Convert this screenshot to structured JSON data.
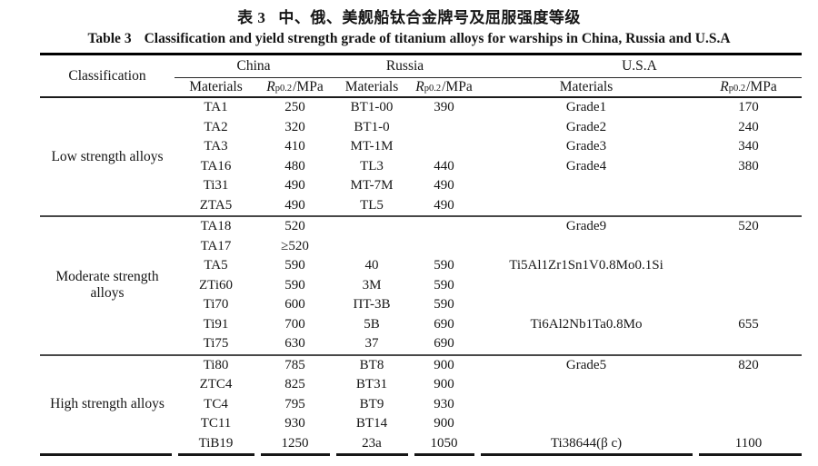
{
  "captions": {
    "zh_label": "表 3",
    "zh_text": "中、俄、美舰船钛合金牌号及屈服强度等级",
    "en_label": "Table 3",
    "en_text": "Classification and yield strength grade of titanium alloys for warships in China, Russia and U.S.A"
  },
  "table": {
    "header": {
      "classification": "Classification",
      "countries": [
        "China",
        "Russia",
        "U.S.A"
      ],
      "materials_label": "Materials",
      "rp": {
        "base": "R",
        "sub": "p0.2",
        "unit": "/MPa"
      }
    },
    "groups": [
      {
        "label": "Low strength alloys",
        "rows": [
          [
            "TA1",
            "250",
            "BT1-00",
            "390",
            "Grade1",
            "170"
          ],
          [
            "TA2",
            "320",
            "BT1-0",
            "",
            "Grade2",
            "240"
          ],
          [
            "TA3",
            "410",
            "MT-1M",
            "",
            "Grade3",
            "340"
          ],
          [
            "TA16",
            "480",
            "TL3",
            "440",
            "Grade4",
            "380"
          ],
          [
            "Ti31",
            "490",
            "MT-7M",
            "490",
            "",
            ""
          ],
          [
            "ZTA5",
            "490",
            "TL5",
            "490",
            "",
            ""
          ]
        ]
      },
      {
        "label": "Moderate strength alloys",
        "rows": [
          [
            "TA18",
            "520",
            "",
            "",
            "Grade9",
            "520"
          ],
          [
            "TA17",
            "≥520",
            "",
            "",
            "",
            ""
          ],
          [
            "TA5",
            "590",
            "40",
            "590",
            "Ti5Al1Zr1Sn1V0.8Mo0.1Si",
            ""
          ],
          [
            "ZTi60",
            "590",
            "3M",
            "590",
            "",
            ""
          ],
          [
            "Ti70",
            "600",
            "ПT-3B",
            "590",
            "",
            ""
          ],
          [
            "Ti91",
            "700",
            "5B",
            "690",
            "Ti6Al2Nb1Ta0.8Mo",
            "655"
          ],
          [
            "Ti75",
            "630",
            "37",
            "690",
            "",
            ""
          ]
        ]
      },
      {
        "label": "High strength alloys",
        "rows": [
          [
            "Ti80",
            "785",
            "BT8",
            "900",
            "Grade5",
            "820"
          ],
          [
            "ZTC4",
            "825",
            "BT31",
            "900",
            "",
            ""
          ],
          [
            "TC4",
            "795",
            "BT9",
            "930",
            "",
            ""
          ],
          [
            "TC11",
            "930",
            "BT14",
            "900",
            "",
            ""
          ],
          [
            "TiB19",
            "1250",
            "23a",
            "1050",
            "Ti38644(β c)",
            "1100"
          ]
        ]
      }
    ]
  }
}
